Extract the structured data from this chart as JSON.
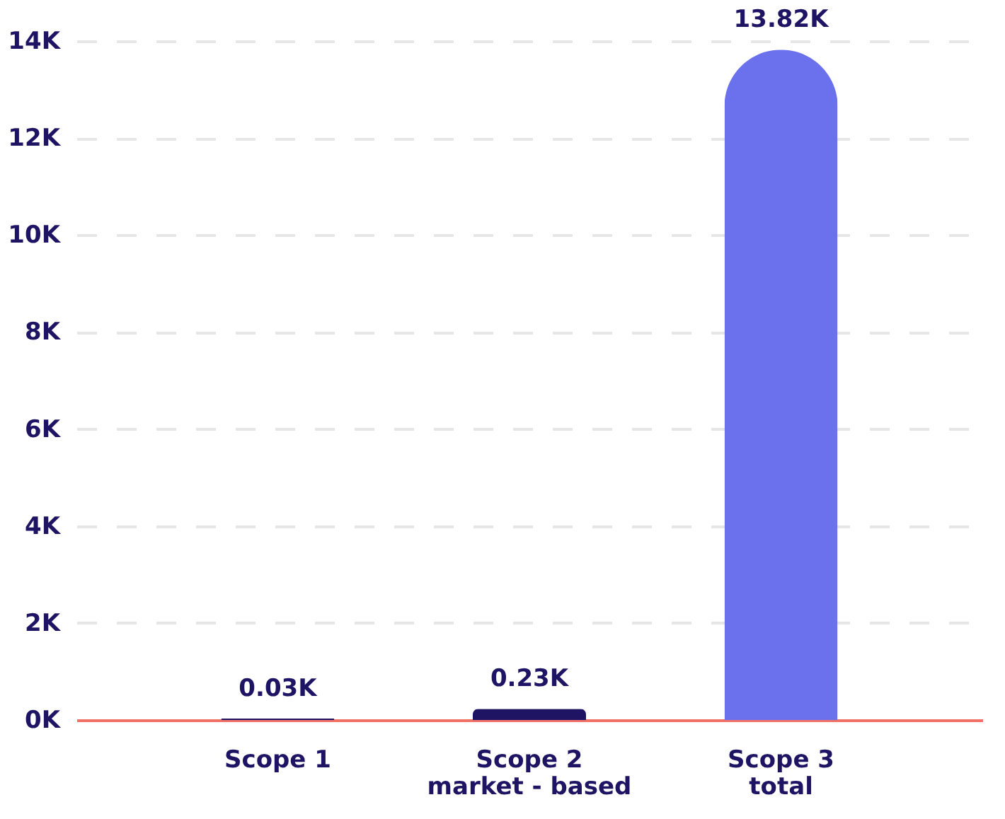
{
  "chart_data": {
    "type": "bar",
    "categories": [
      "Scope 1",
      "Scope 2\nmarket - based",
      "Scope 3\ntotal"
    ],
    "values": [
      30,
      230,
      13820
    ],
    "colors": [
      "#1f1464",
      "#1f1464",
      "#6b70ec"
    ],
    "value_labels": [
      "0.03K",
      "0.23K",
      "13.82K"
    ],
    "ylim": [
      0,
      14000
    ],
    "yticks": [
      {
        "value": 0,
        "label": "0K"
      },
      {
        "value": 2000,
        "label": "2K"
      },
      {
        "value": 4000,
        "label": "4K"
      },
      {
        "value": 6000,
        "label": "6K"
      },
      {
        "value": 8000,
        "label": "8K"
      },
      {
        "value": 10000,
        "label": "10K"
      },
      {
        "value": 12000,
        "label": "12K"
      },
      {
        "value": 14000,
        "label": "14K"
      }
    ],
    "grid": "y"
  }
}
